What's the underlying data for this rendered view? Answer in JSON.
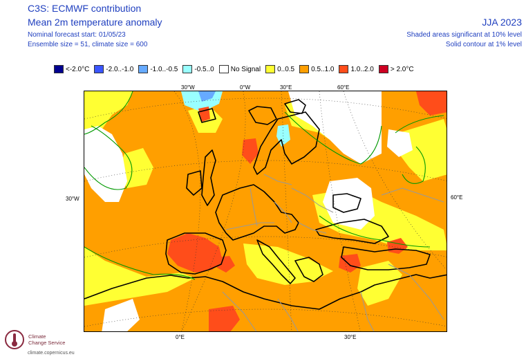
{
  "header": {
    "title": "C3S: ECMWF contribution",
    "subtitle": "Mean 2m temperature anomaly",
    "forecast_start": "Nominal forecast start: 01/05/23",
    "ensemble": "Ensemble size = 51, climate size = 600",
    "season": "JJA 2023",
    "sig_shaded": "Shaded areas significant at 10% level",
    "sig_contour": "Solid contour at 1% level"
  },
  "legend": [
    {
      "label": "<-2.0°C",
      "color": "#00008f"
    },
    {
      "label": "-2.0..-1.0",
      "color": "#3a55ff"
    },
    {
      "label": "-1.0..-0.5",
      "color": "#66aaff"
    },
    {
      "label": "-0.5..0",
      "color": "#99ffff"
    },
    {
      "label": "No Signal",
      "color": "#ffffff"
    },
    {
      "label": "0..0.5",
      "color": "#ffff33"
    },
    {
      "label": "0.5..1.0",
      "color": "#ff9f00"
    },
    {
      "label": "1.0..2.0",
      "color": "#ff4d1a"
    },
    {
      "label": "> 2.0°C",
      "color": "#cc0022"
    }
  ],
  "grid_labels": {
    "lon_top_1": "30°W",
    "lon_top_2": "0°W",
    "lon_top_3": "30°E",
    "lon_top_4": "60°E",
    "left": "30°W",
    "right": "60°E",
    "bottom_1": "0°E",
    "bottom_2": "30°E"
  },
  "logo": {
    "line1": "Climate",
    "line2": "Change Service",
    "url": "climate.copernicus.eu"
  }
}
